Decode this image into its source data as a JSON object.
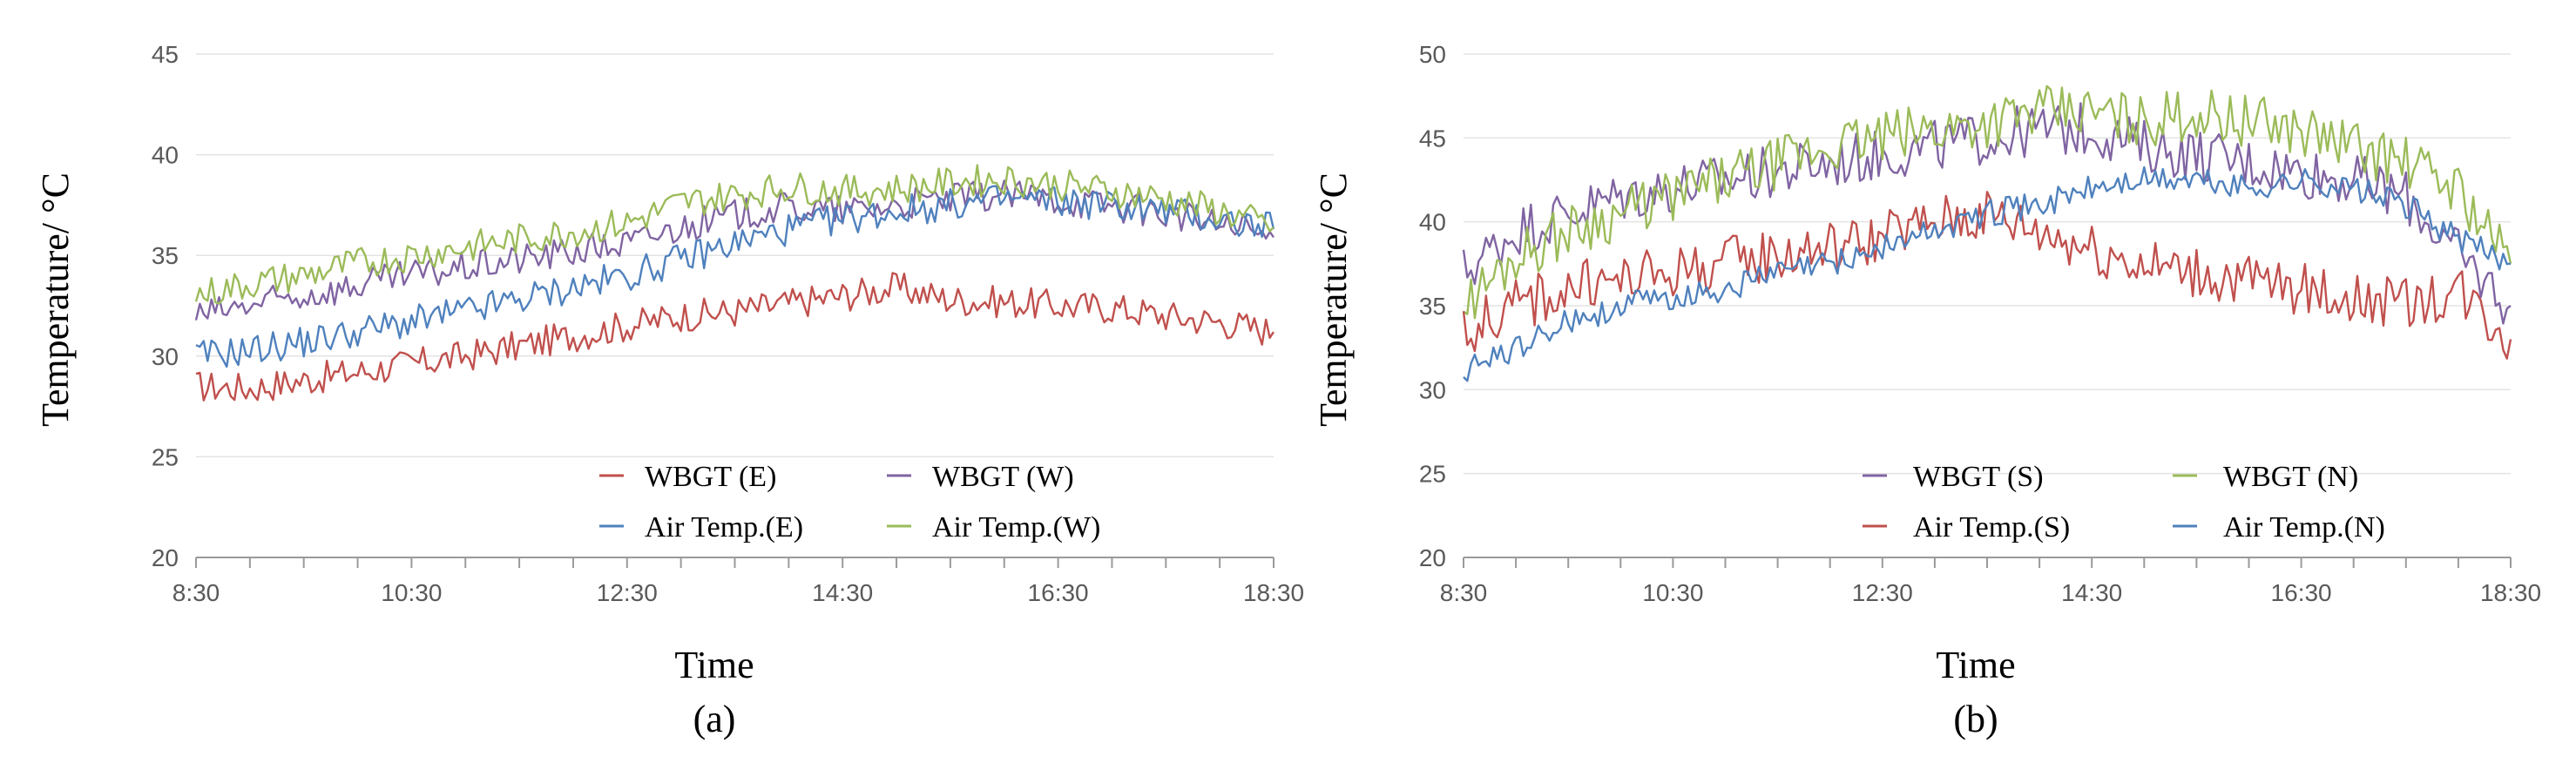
{
  "chart_data": [
    {
      "type": "line",
      "panel_label": "(a)",
      "xlabel": "Time",
      "ylabel": "Temperature/ °C",
      "ylim": [
        20,
        45
      ],
      "yticks": [
        20,
        25,
        30,
        35,
        40,
        45
      ],
      "xlim": [
        8.5,
        18.5
      ],
      "xtick_labels": [
        "8:30",
        "10:30",
        "12:30",
        "14:30",
        "16:30",
        "18:30"
      ],
      "x_hours": [
        8.5,
        9,
        9.5,
        10,
        10.5,
        11,
        11.5,
        12,
        12.5,
        13,
        13.5,
        14,
        14.5,
        15,
        15.5,
        16,
        16.5,
        17,
        17.5,
        18,
        18.5
      ],
      "legend_location": "bottom-right",
      "series": [
        {
          "name": "WBGT (E)",
          "color": "#c0504d",
          "values": [
            28.5,
            28.4,
            28.8,
            29.2,
            29.6,
            30.0,
            30.5,
            31.0,
            31.5,
            32.0,
            32.2,
            32.6,
            33.0,
            33.4,
            32.8,
            32.7,
            32.5,
            32.4,
            32.0,
            31.7,
            31.2
          ]
        },
        {
          "name": "WBGT (W)",
          "color": "#8064a2",
          "values": [
            32.0,
            32.5,
            33.0,
            33.5,
            34.0,
            34.4,
            34.8,
            35.2,
            35.6,
            36.4,
            37.0,
            37.4,
            37.2,
            37.5,
            37.8,
            38.0,
            37.8,
            37.5,
            37.1,
            36.5,
            35.9
          ]
        },
        {
          "name": "Air Temp.(E)",
          "color": "#4f81bd",
          "values": [
            30.0,
            30.3,
            30.7,
            31.2,
            31.7,
            32.2,
            32.8,
            33.4,
            34.0,
            34.8,
            35.6,
            36.3,
            36.8,
            37.2,
            37.5,
            37.8,
            37.7,
            37.5,
            37.2,
            36.8,
            36.3
          ]
        },
        {
          "name": "Air Temp.(W)",
          "color": "#9bbb59",
          "values": [
            33.0,
            33.6,
            34.0,
            34.6,
            35.0,
            35.4,
            35.8,
            36.2,
            36.6,
            37.6,
            38.0,
            38.4,
            38.2,
            38.3,
            38.6,
            38.8,
            38.5,
            38.2,
            37.8,
            37.2,
            36.4
          ]
        }
      ]
    },
    {
      "type": "line",
      "panel_label": "(b)",
      "xlabel": "Time",
      "ylabel": "Temperature/ °C",
      "ylim": [
        20,
        50
      ],
      "yticks": [
        20,
        25,
        30,
        35,
        40,
        45,
        50
      ],
      "xlim": [
        8.5,
        18.5
      ],
      "xtick_labels": [
        "8:30",
        "10:30",
        "12:30",
        "14:30",
        "16:30",
        "18:30"
      ],
      "x_hours": [
        8.5,
        9,
        9.5,
        10,
        10.5,
        11,
        11.5,
        12,
        12.5,
        13,
        13.5,
        14,
        14.5,
        15,
        15.5,
        16,
        16.5,
        17,
        17.5,
        18,
        18.5
      ],
      "legend_location": "bottom-right",
      "series": [
        {
          "name": "WBGT (S)",
          "color": "#8064a2",
          "values": [
            37.0,
            39.5,
            40.5,
            41.5,
            42.0,
            42.5,
            43.0,
            43.5,
            44.0,
            44.5,
            45.0,
            45.5,
            45.5,
            44.5,
            44.0,
            43.5,
            43.0,
            42.5,
            41.5,
            38.0,
            35.0
          ]
        },
        {
          "name": "WBGT (N)",
          "color": "#9bbb59",
          "values": [
            35.0,
            38.0,
            39.5,
            40.5,
            41.5,
            42.5,
            43.5,
            44.5,
            45.0,
            45.5,
            46.0,
            46.5,
            46.5,
            46.0,
            46.5,
            46.0,
            45.5,
            44.5,
            43.5,
            42.0,
            37.5
          ]
        },
        {
          "name": "Air Temp.(S)",
          "color": "#c0504d",
          "values": [
            33.5,
            35.0,
            36.0,
            36.5,
            37.0,
            37.5,
            38.0,
            38.5,
            39.0,
            40.0,
            40.5,
            39.5,
            38.5,
            37.5,
            37.0,
            36.5,
            36.0,
            35.5,
            35.0,
            36.0,
            33.0
          ]
        },
        {
          "name": "Air Temp.(N)",
          "color": "#4f81bd",
          "values": [
            31.0,
            32.5,
            34.0,
            35.0,
            35.5,
            36.0,
            37.0,
            37.5,
            38.5,
            39.5,
            40.5,
            41.0,
            42.0,
            42.5,
            42.5,
            42.0,
            42.5,
            42.0,
            41.0,
            39.0,
            37.5
          ]
        }
      ]
    }
  ]
}
